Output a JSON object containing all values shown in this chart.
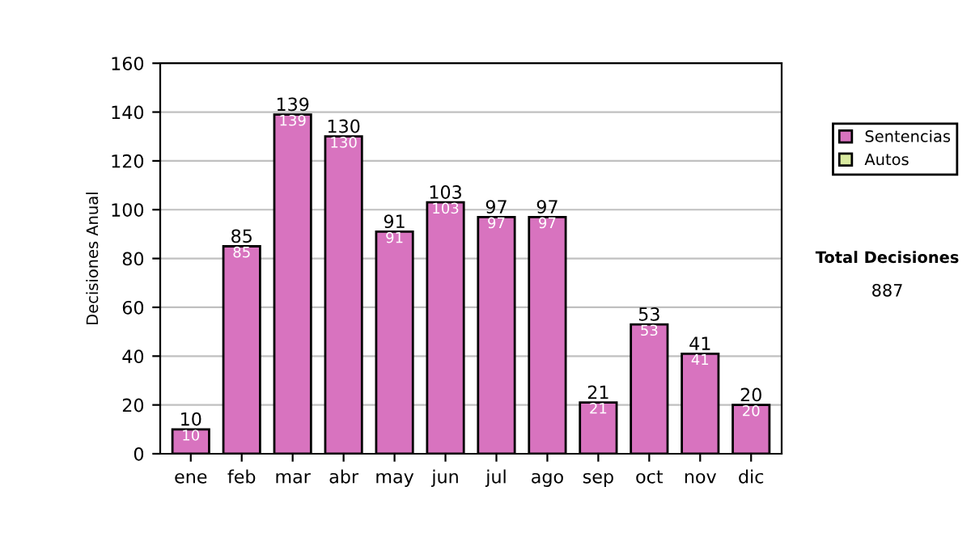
{
  "chart_data": {
    "type": "bar",
    "ylabel": "Decisiones Anual",
    "categories": [
      "ene",
      "feb",
      "mar",
      "abr",
      "may",
      "jun",
      "jul",
      "ago",
      "sep",
      "oct",
      "nov",
      "dic"
    ],
    "series": [
      {
        "name": "Sentencias",
        "color": "#d873bf",
        "values": [
          10,
          85,
          139,
          130,
          91,
          103,
          97,
          97,
          21,
          53,
          41,
          20
        ]
      },
      {
        "name": "Autos",
        "color": "#d9eaa0",
        "values": [
          null,
          null,
          null,
          null,
          null,
          null,
          null,
          null,
          null,
          null,
          null,
          null
        ]
      }
    ],
    "stacked": true,
    "data_labels": true,
    "totals": [
      "10",
      "85",
      "139",
      "130",
      "91",
      "103",
      "97",
      "97",
      "21",
      "53",
      "41",
      "20"
    ],
    "ylim": [
      0,
      160
    ],
    "yticks": [
      0,
      20,
      40,
      60,
      80,
      100,
      120,
      140,
      160
    ],
    "grid": "y",
    "legend": "right",
    "annotations": [
      "Total Decisiones",
      "887"
    ]
  }
}
